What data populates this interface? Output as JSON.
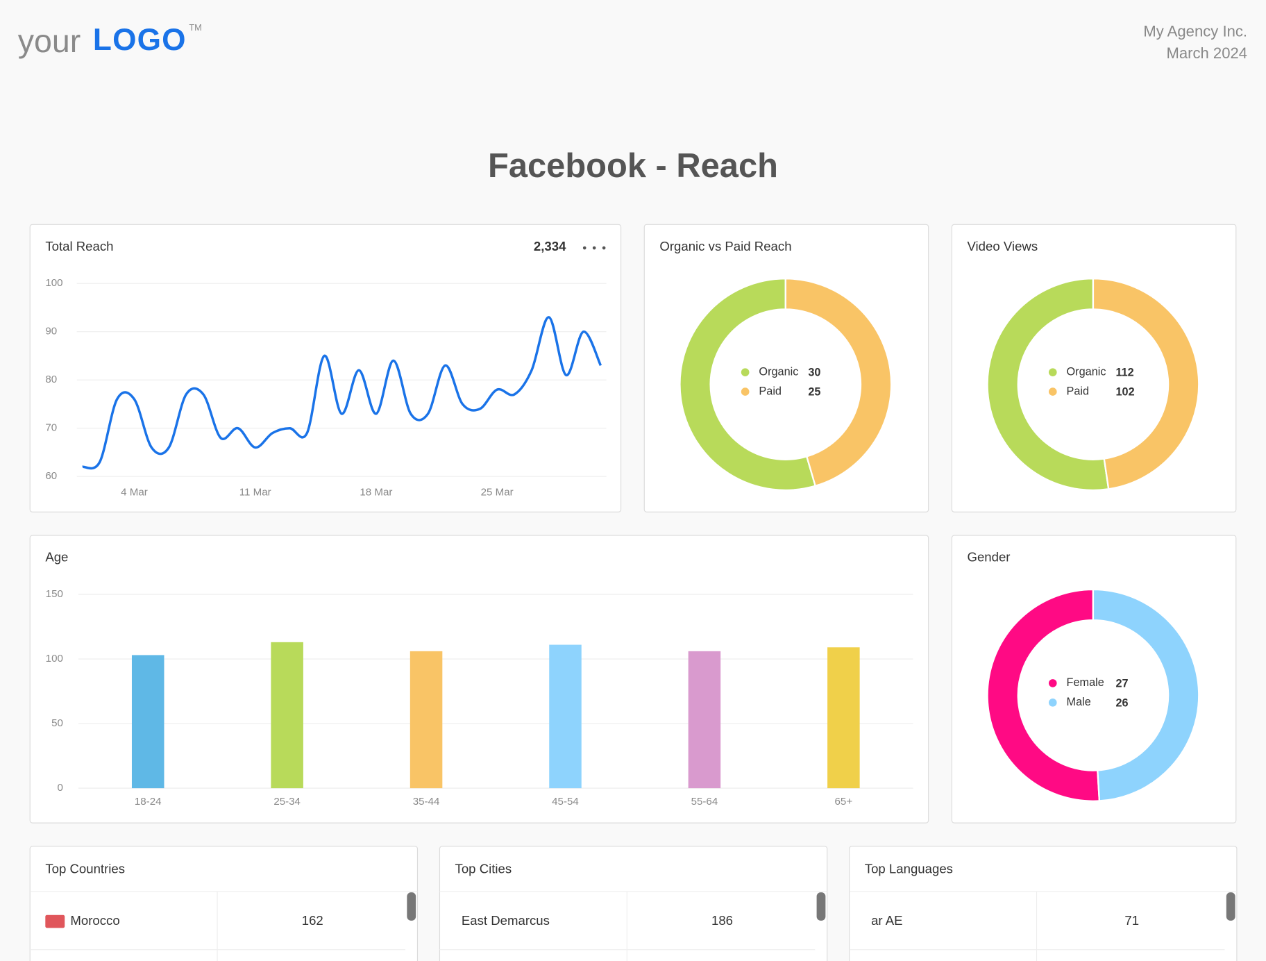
{
  "header": {
    "logo_your": "your",
    "logo_main": "LOGO",
    "logo_tm": "TM",
    "agency": "My Agency Inc.",
    "date": "March 2024",
    "title": "Facebook - Reach"
  },
  "chart_data": [
    {
      "type": "line",
      "title": "Total Reach",
      "total": "2,334",
      "categories": [
        null,
        null,
        null,
        "4 Mar",
        null,
        null,
        null,
        null,
        null,
        null,
        "11 Mar",
        null,
        null,
        null,
        null,
        null,
        null,
        "18 Mar",
        null,
        null,
        null,
        null,
        null,
        null,
        "25 Mar",
        null,
        null,
        null,
        null,
        null,
        null
      ],
      "values": [
        62,
        63,
        76,
        76,
        66,
        66,
        77,
        77,
        68,
        70,
        66,
        69,
        70,
        69,
        85,
        73,
        82,
        73,
        84,
        73,
        73,
        83,
        75,
        74,
        78,
        77,
        82,
        93,
        81,
        90,
        83
      ],
      "color": "#1a73e8",
      "ylim": [
        60,
        100
      ],
      "yticks": [
        60,
        70,
        80,
        90,
        100
      ],
      "grid": true
    },
    {
      "type": "donut",
      "title": "Organic vs Paid Reach",
      "categories": [
        "Organic",
        "Paid"
      ],
      "values": [
        30,
        25
      ],
      "colors": [
        "#b8da5a",
        "#f9c466"
      ]
    },
    {
      "type": "donut",
      "title": "Video Views",
      "categories": [
        "Organic",
        "Paid"
      ],
      "values": [
        112,
        102
      ],
      "colors": [
        "#b8da5a",
        "#f9c466"
      ]
    },
    {
      "type": "bar",
      "title": "Age",
      "categories": [
        "18-24",
        "25-34",
        "35-44",
        "45-54",
        "55-64",
        "65+"
      ],
      "values": [
        103,
        113,
        106,
        111,
        106,
        109
      ],
      "colors": [
        "#5fb8e6",
        "#b8da5a",
        "#f9c466",
        "#8ed3fd",
        "#d99ace",
        "#f0d04a"
      ],
      "ylim": [
        0,
        150
      ],
      "yticks": [
        0,
        50,
        100,
        150
      ],
      "grid": true
    },
    {
      "type": "donut",
      "title": "Gender",
      "categories": [
        "Female",
        "Male"
      ],
      "values": [
        27,
        26
      ],
      "colors": [
        "#ff0a84",
        "#8ed3fd"
      ]
    }
  ],
  "tables": [
    {
      "title": "Top Countries",
      "rows": [
        [
          "Morocco",
          162
        ]
      ]
    },
    {
      "title": "Top Cities",
      "rows": [
        [
          "East Demarcus",
          186
        ]
      ]
    },
    {
      "title": "Top Languages",
      "rows": [
        [
          "ar AE",
          71
        ]
      ]
    }
  ]
}
